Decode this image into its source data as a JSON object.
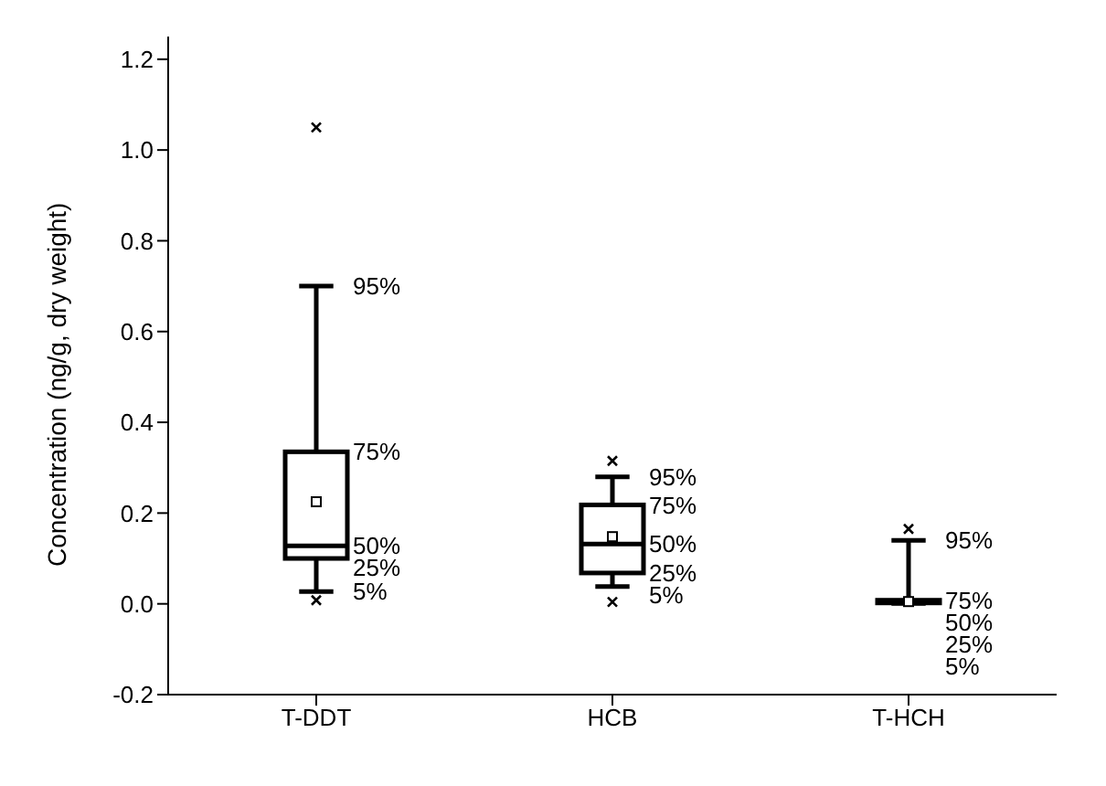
{
  "chart_data": {
    "type": "box",
    "ylabel": "Concentration (ng/g, dry weight)",
    "categories": [
      "T-DDT",
      "HCB",
      "T-HCH"
    ],
    "boxes": [
      {
        "low": 0.027,
        "q1": 0.1,
        "median": 0.128,
        "q3": 0.335,
        "high": 0.7,
        "mean": 0.225,
        "outliers": [
          1.05,
          0.008
        ]
      },
      {
        "low": 0.038,
        "q1": 0.068,
        "median": 0.132,
        "q3": 0.218,
        "high": 0.28,
        "mean": 0.148,
        "outliers": [
          0.315,
          0.004
        ]
      },
      {
        "low": 0.001,
        "q1": 0.002,
        "median": 0.004,
        "q3": 0.008,
        "high": 0.14,
        "mean": 0.005,
        "outliers": [
          0.165
        ]
      }
    ],
    "ylim": [
      -0.2,
      1.25
    ],
    "yticks": [
      {
        "value": -0.2,
        "label": "-0.2"
      },
      {
        "value": 0,
        "label": "0.0"
      },
      {
        "value": 0.2,
        "label": "0.2"
      },
      {
        "value": 0.4,
        "label": "0.4"
      },
      {
        "value": 0.6,
        "label": "0.6"
      },
      {
        "value": 0.8,
        "label": "0.8"
      },
      {
        "value": 1,
        "label": "1.0"
      },
      {
        "value": 1.2,
        "label": "1.2"
      }
    ],
    "grid": false,
    "legend": false,
    "annotations": [
      {
        "text": "5%",
        "x": "T-DDT",
        "y": 0.027
      },
      {
        "text": "25%",
        "x": "T-DDT",
        "y": 0.1
      },
      {
        "text": "50%",
        "x": "T-DDT",
        "y": 0.128
      },
      {
        "text": "75%",
        "x": "T-DDT",
        "y": 0.335
      },
      {
        "text": "95%",
        "x": "T-DDT",
        "y": 0.7
      },
      {
        "text": "5%",
        "x": "HCB",
        "y": 0.038
      },
      {
        "text": "25%",
        "x": "HCB",
        "y": 0.068
      },
      {
        "text": "50%",
        "x": "HCB",
        "y": 0.132
      },
      {
        "text": "75%",
        "x": "HCB",
        "y": 0.218
      },
      {
        "text": "95%",
        "x": "HCB",
        "y": 0.28
      },
      {
        "text": "5%",
        "x": "T-HCH",
        "y": 0.001
      },
      {
        "text": "25%",
        "x": "T-HCH",
        "y": 0.002
      },
      {
        "text": "50%",
        "x": "T-HCH",
        "y": 0.004
      },
      {
        "text": "75%",
        "x": "T-HCH",
        "y": 0.008
      },
      {
        "text": "95%",
        "x": "T-HCH",
        "y": 0.14
      }
    ]
  }
}
